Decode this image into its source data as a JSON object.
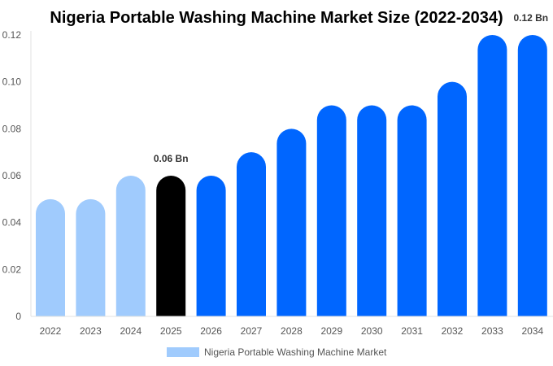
{
  "chart_data": {
    "type": "bar",
    "title": "Nigeria Portable Washing Machine Market Size (2022-2034)",
    "categories": [
      "2022",
      "2023",
      "2024",
      "2025",
      "2026",
      "2027",
      "2028",
      "2029",
      "2030",
      "2031",
      "2032",
      "2033",
      "2034"
    ],
    "series": [
      {
        "name": "Nigeria Portable Washing Machine Market",
        "values": [
          0.05,
          0.05,
          0.06,
          0.06,
          0.06,
          0.07,
          0.08,
          0.09,
          0.09,
          0.09,
          0.1,
          0.12,
          0.12
        ]
      }
    ],
    "bar_colors": [
      "#a0cbfd",
      "#a0cbfd",
      "#a0cbfd",
      "#000000",
      "#0066ff",
      "#0066ff",
      "#0066ff",
      "#0066ff",
      "#0066ff",
      "#0066ff",
      "#0066ff",
      "#0066ff",
      "#0066ff"
    ],
    "data_labels": [
      {
        "category": "2025",
        "text": "0.06 Bn"
      },
      {
        "category": "2034",
        "text": "0.12 Bn"
      }
    ],
    "ylim": [
      0,
      0.12
    ],
    "yticks": [
      "0",
      "0.02",
      "0.04",
      "0.06",
      "0.08",
      "0.10",
      "0.12"
    ],
    "xlabel": "",
    "ylabel": "",
    "grid": false,
    "legend_position": "bottom",
    "legend_color": "#a0cbfd"
  }
}
